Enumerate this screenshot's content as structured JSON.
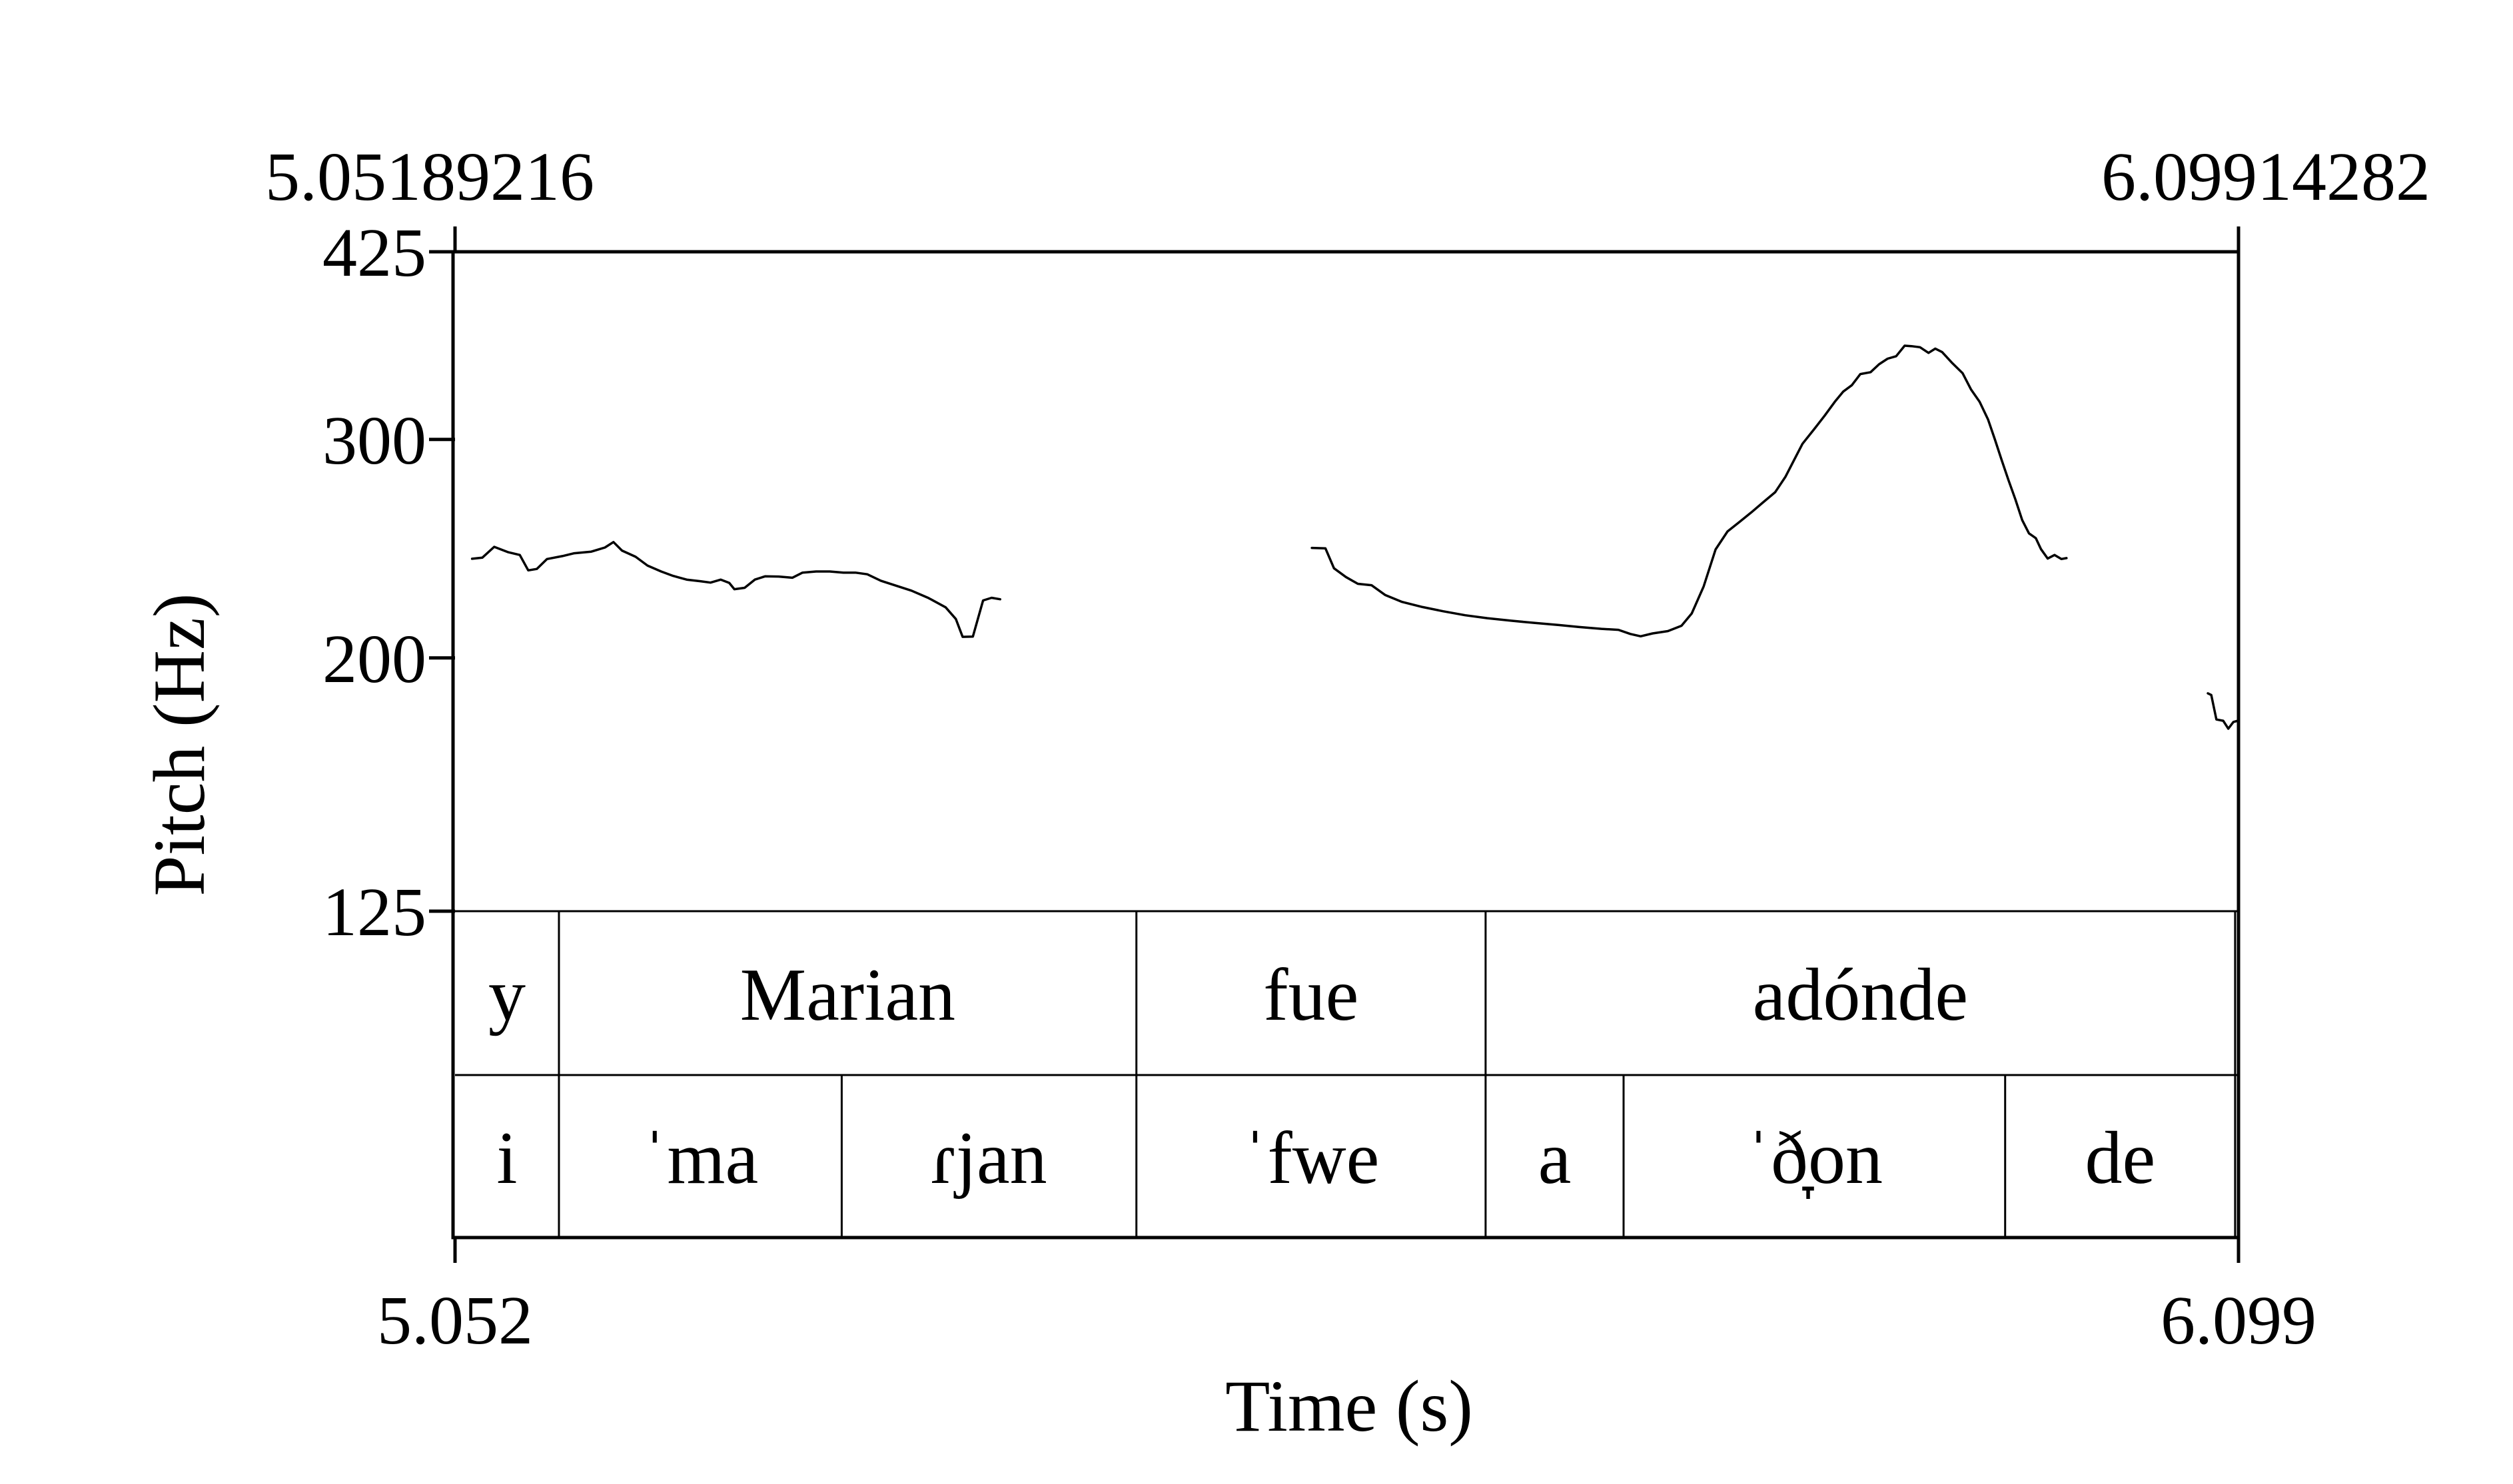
{
  "chart_data": {
    "type": "line",
    "title": "",
    "xlabel": "Time (s)",
    "ylabel": "Pitch (Hz)",
    "x_range": [
      5.052,
      6.099
    ],
    "y_range": [
      125,
      425
    ],
    "y_scale": "log",
    "y_ticks": [
      425,
      300,
      200,
      125
    ],
    "y_tick_labels": [
      "425",
      "300",
      "200",
      "125"
    ],
    "x_tick_labels": [
      "5.052",
      "6.099"
    ],
    "top_labels": [
      "5.05189216",
      "6.09914282"
    ],
    "grid": false,
    "line_color": "#000000",
    "series": [
      {
        "segments": [
          [
            [
              5.062,
              240.4
            ],
            [
              5.068,
              240.9
            ],
            [
              5.075,
              245.8
            ],
            [
              5.083,
              243.4
            ],
            [
              5.09,
              242.1
            ],
            [
              5.095,
              235.3
            ],
            [
              5.1,
              235.9
            ],
            [
              5.106,
              240.3
            ],
            [
              5.115,
              241.6
            ],
            [
              5.122,
              242.9
            ],
            [
              5.132,
              243.6
            ],
            [
              5.14,
              245.5
            ],
            [
              5.145,
              248.0
            ],
            [
              5.15,
              244.1
            ],
            [
              5.158,
              241.3
            ],
            [
              5.165,
              237.4
            ],
            [
              5.173,
              234.8
            ],
            [
              5.18,
              232.9
            ],
            [
              5.188,
              231.3
            ],
            [
              5.196,
              230.6
            ],
            [
              5.202,
              230.0
            ],
            [
              5.208,
              231.3
            ],
            [
              5.213,
              229.9
            ],
            [
              5.216,
              227.2
            ],
            [
              5.222,
              227.8
            ],
            [
              5.228,
              231.3
            ],
            [
              5.234,
              232.7
            ],
            [
              5.242,
              232.6
            ],
            [
              5.25,
              232.1
            ],
            [
              5.256,
              234.3
            ],
            [
              5.264,
              234.8
            ],
            [
              5.272,
              234.8
            ],
            [
              5.28,
              234.3
            ],
            [
              5.287,
              234.3
            ],
            [
              5.294,
              233.6
            ],
            [
              5.302,
              230.8
            ],
            [
              5.31,
              228.9
            ],
            [
              5.32,
              226.6
            ],
            [
              5.33,
              223.5
            ],
            [
              5.34,
              219.7
            ],
            [
              5.346,
              215.0
            ],
            [
              5.35,
              208.0
            ],
            [
              5.356,
              208.1
            ],
            [
              5.362,
              222.5
            ],
            [
              5.367,
              223.6
            ],
            [
              5.372,
              223.0
            ]
          ],
          [
            [
              5.555,
              245.3
            ],
            [
              5.563,
              245.1
            ],
            [
              5.568,
              236.2
            ],
            [
              5.575,
              232.4
            ],
            [
              5.582,
              229.5
            ],
            [
              5.59,
              228.9
            ],
            [
              5.598,
              224.8
            ],
            [
              5.608,
              221.9
            ],
            [
              5.62,
              219.8
            ],
            [
              5.632,
              218.1
            ],
            [
              5.645,
              216.5
            ],
            [
              5.658,
              215.3
            ],
            [
              5.672,
              214.3
            ],
            [
              5.686,
              213.4
            ],
            [
              5.7,
              212.6
            ],
            [
              5.712,
              211.8
            ],
            [
              5.725,
              211.1
            ],
            [
              5.735,
              210.7
            ],
            [
              5.742,
              209.1
            ],
            [
              5.748,
              208.2
            ],
            [
              5.755,
              209.3
            ],
            [
              5.764,
              210.2
            ],
            [
              5.772,
              212.3
            ],
            [
              5.778,
              217.2
            ],
            [
              5.785,
              228.4
            ],
            [
              5.792,
              244.6
            ],
            [
              5.799,
              252.9
            ],
            [
              5.806,
              257.4
            ],
            [
              5.813,
              262.0
            ],
            [
              5.82,
              267.0
            ],
            [
              5.827,
              272.0
            ],
            [
              5.833,
              279.9
            ],
            [
              5.838,
              288.6
            ],
            [
              5.843,
              297.6
            ],
            [
              5.85,
              305.9
            ],
            [
              5.856,
              313.5
            ],
            [
              5.862,
              321.7
            ],
            [
              5.867,
              327.9
            ],
            [
              5.872,
              331.8
            ],
            [
              5.877,
              338.7
            ],
            [
              5.883,
              339.9
            ],
            [
              5.888,
              344.9
            ],
            [
              5.893,
              348.5
            ],
            [
              5.898,
              350.1
            ],
            [
              5.903,
              357.0
            ],
            [
              5.907,
              356.7
            ],
            [
              5.912,
              356.0
            ],
            [
              5.917,
              352.3
            ],
            [
              5.921,
              355.1
            ],
            [
              5.925,
              352.8
            ],
            [
              5.931,
              345.6
            ],
            [
              5.937,
              339.3
            ],
            [
              5.942,
              329.1
            ],
            [
              5.947,
              321.7
            ],
            [
              5.952,
              311.3
            ],
            [
              5.956,
              299.9
            ],
            [
              5.96,
              288.6
            ],
            [
              5.964,
              278.1
            ],
            [
              5.968,
              268.4
            ],
            [
              5.972,
              258.3
            ],
            [
              5.976,
              252.0
            ],
            [
              5.98,
              249.8
            ],
            [
              5.983,
              244.8
            ],
            [
              5.987,
              240.5
            ],
            [
              5.991,
              242.1
            ],
            [
              5.995,
              240.3
            ],
            [
              5.998,
              240.7
            ]
          ],
          [
            [
              6.081,
              187.3
            ],
            [
              6.083,
              186.7
            ],
            [
              6.086,
              178.4
            ],
            [
              6.09,
              178.0
            ],
            [
              6.093,
              175.4
            ],
            [
              6.096,
              177.6
            ],
            [
              6.098,
              177.9
            ]
          ]
        ]
      }
    ]
  },
  "tiers": [
    {
      "name": "words",
      "intervals": [
        {
          "start": 5.052,
          "end": 5.113,
          "label": "y"
        },
        {
          "start": 5.113,
          "end": 5.452,
          "label": "Marian"
        },
        {
          "start": 5.452,
          "end": 5.657,
          "label": "fue"
        },
        {
          "start": 5.657,
          "end": 6.097,
          "label": "adónde"
        }
      ]
    },
    {
      "name": "syllables",
      "intervals": [
        {
          "start": 5.052,
          "end": 5.113,
          "label": "i"
        },
        {
          "start": 5.113,
          "end": 5.279,
          "label": "ˈma"
        },
        {
          "start": 5.279,
          "end": 5.452,
          "label": "ɾjan"
        },
        {
          "start": 5.452,
          "end": 5.657,
          "label": "ˈfwe"
        },
        {
          "start": 5.657,
          "end": 5.738,
          "label": "a"
        },
        {
          "start": 5.738,
          "end": 5.962,
          "label": "ˈð̞on"
        },
        {
          "start": 5.962,
          "end": 6.097,
          "label": "de"
        }
      ]
    }
  ]
}
